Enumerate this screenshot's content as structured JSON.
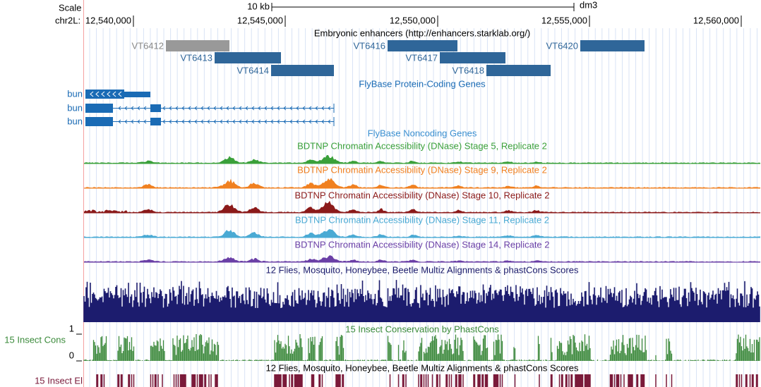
{
  "header": {
    "scale_label": "Scale",
    "scale_bar": "10 kb",
    "assembly": "dm3",
    "chrom": "chr2L:",
    "positions": [
      "12,540,000",
      "12,545,000",
      "12,550,000",
      "12,555,000",
      "12,560,000"
    ]
  },
  "tracks": {
    "enhancers": {
      "title": "Embryonic enhancers (http://enhancers.starklab.org/)",
      "items": [
        "VT6412",
        "VT6413",
        "VT6414",
        "VT6416",
        "VT6417",
        "VT6418",
        "VT6420"
      ]
    },
    "protein_genes": {
      "title": "FlyBase Protein-Coding Genes",
      "items": [
        "bun",
        "bun",
        "bun"
      ]
    },
    "noncoding": {
      "title": "FlyBase Noncoding Genes"
    },
    "dnase": [
      {
        "title": "BDTNP Chromatin Accessibility (DNase) Stage 5, Replicate 2"
      },
      {
        "title": "BDTNP Chromatin Accessibility (DNase) Stage 9, Replicate 2"
      },
      {
        "title": "BDTNP Chromatin Accessibility (DNase) Stage 10, Replicate 2"
      },
      {
        "title": "BDTNP Chromatin Accessibility (DNase) Stage 11, Replicate 2"
      },
      {
        "title": "BDTNP Chromatin Accessibility (DNase) Stage 14, Replicate 2"
      }
    ],
    "multiz": {
      "title": "12 Flies, Mosquito, Honeybee, Beetle Multiz Alignments & phastCons Scores"
    },
    "phastcons": {
      "title": "15 Insect Conservation by PhastCons",
      "side_label": "15 Insect Cons",
      "max_label": "1",
      "min_label": "0"
    },
    "elements": {
      "title": "12 Flies, Mosquito, Honeybee, Beetle Multiz Alignments & phastCons Scores",
      "side_label": "15 Insect El"
    }
  }
}
